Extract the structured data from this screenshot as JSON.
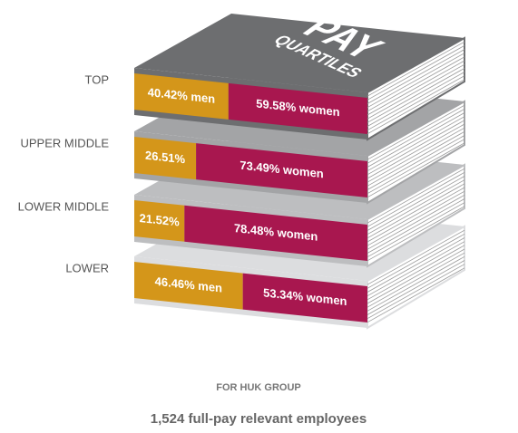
{
  "chart_data": {
    "type": "stacked-bar",
    "cover_title": "PAY",
    "cover_subtitle": "QUARTILES",
    "categories": [
      "TOP",
      "UPPER MIDDLE",
      "LOWER MIDDLE",
      "LOWER"
    ],
    "series": [
      {
        "name": "men",
        "color": "#d4961a",
        "values": [
          40.42,
          26.51,
          21.52,
          46.46
        ],
        "value_labels": [
          "40.42% men",
          "26.51%",
          "21.52%",
          "46.46% men"
        ]
      },
      {
        "name": "women",
        "color": "#a8174f",
        "values": [
          59.58,
          73.49,
          78.48,
          53.34
        ],
        "value_labels": [
          "59.58% women",
          "73.49% women",
          "78.48% women",
          "53.34% women"
        ]
      }
    ],
    "subtitle": "FOR HUK GROUP",
    "note": "1,524 full-pay relevant employees"
  }
}
